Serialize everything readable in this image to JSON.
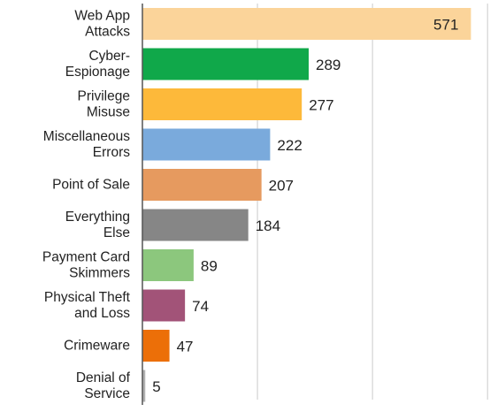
{
  "chart_data": {
    "type": "bar",
    "orientation": "horizontal",
    "categories": [
      [
        "Web App",
        "Attacks"
      ],
      [
        "Cyber-",
        "Espionage"
      ],
      [
        "Privilege",
        "Misuse"
      ],
      [
        "Miscellaneous",
        "Errors"
      ],
      [
        "Point of Sale"
      ],
      [
        "Everything",
        "Else"
      ],
      [
        "Payment Card",
        "Skimmers"
      ],
      [
        "Physical Theft",
        "and Loss"
      ],
      [
        "Crimeware"
      ],
      [
        "Denial of",
        "Service"
      ]
    ],
    "values": [
      571,
      289,
      277,
      222,
      207,
      184,
      89,
      74,
      47,
      5
    ],
    "colors": [
      "#fbd49a",
      "#10a84a",
      "#fdb93a",
      "#7aaadc",
      "#e69a5f",
      "#868686",
      "#8cc77d",
      "#a25378",
      "#ec6f08",
      "#b0b0b0"
    ],
    "value_labels": [
      "571",
      "289",
      "277",
      "222",
      "207",
      "184",
      "89",
      "74",
      "47",
      "5"
    ],
    "xlim": [
      0,
      600
    ],
    "grid": true,
    "gridlines_at": [
      200,
      400,
      600
    ],
    "title": "",
    "xlabel": "",
    "ylabel": ""
  }
}
